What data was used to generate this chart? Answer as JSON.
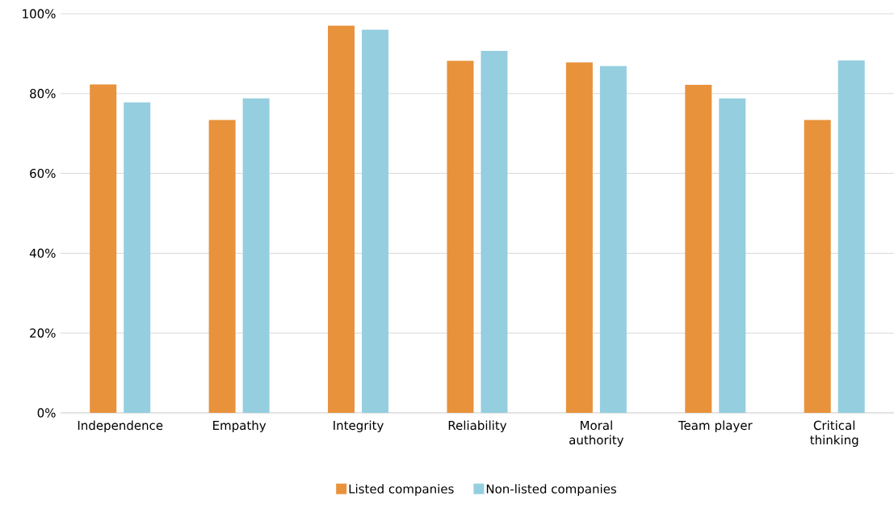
{
  "chart_data": {
    "type": "bar",
    "categories": [
      "Independence",
      "Empathy",
      "Integrity",
      "Reliability",
      "Moral authority",
      "Team player",
      "Critical thinking"
    ],
    "series": [
      {
        "name": "Listed companies",
        "color": "#e8923c",
        "values": [
          82.3,
          73.4,
          97.0,
          88.2,
          87.8,
          82.2,
          73.4
        ]
      },
      {
        "name": "Non-listed companies",
        "color": "#95cedf",
        "values": [
          77.8,
          78.8,
          96.0,
          90.7,
          86.9,
          78.8,
          88.3
        ]
      }
    ],
    "ylim": [
      0,
      100
    ],
    "yticks": [
      {
        "value": 0,
        "label": "0%"
      },
      {
        "value": 20,
        "label": "20%"
      },
      {
        "value": 40,
        "label": "40%"
      },
      {
        "value": 60,
        "label": "60%"
      },
      {
        "value": 80,
        "label": "80%"
      },
      {
        "value": 100,
        "label": "100%"
      }
    ],
    "grid": "y",
    "legend": "bottom"
  }
}
